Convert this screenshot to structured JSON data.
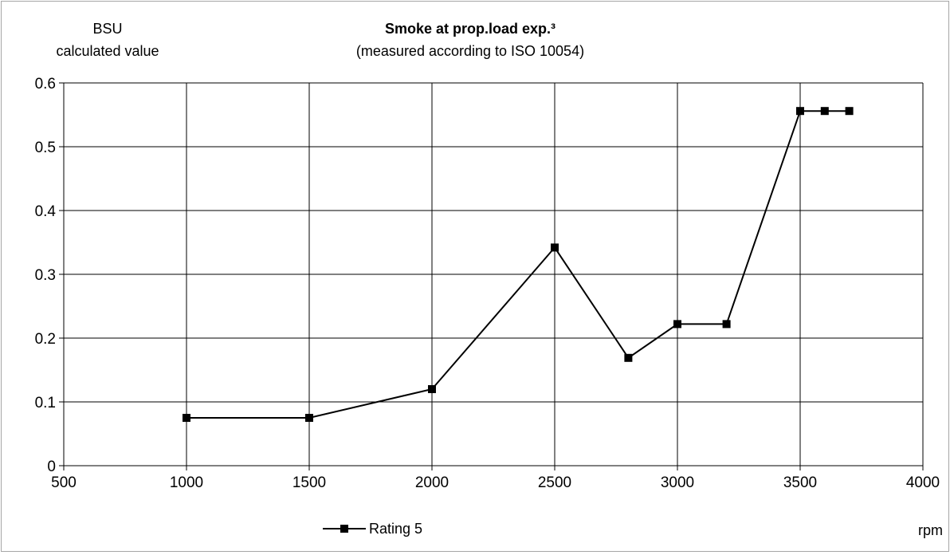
{
  "chart_data": {
    "type": "line",
    "title": "Smoke at prop.load exp.³",
    "subtitle": "(measured according to ISO 10054)",
    "ylabel_line1": "BSU",
    "ylabel_line2": "calculated value",
    "xlabel": "rpm",
    "xlim": [
      500,
      4000
    ],
    "ylim": [
      0,
      0.6
    ],
    "xticks": [
      500,
      1000,
      1500,
      2000,
      2500,
      3000,
      3500,
      4000
    ],
    "yticks": [
      0,
      0.1,
      0.2,
      0.3,
      0.4,
      0.5,
      0.6
    ],
    "xtick_labels": [
      "500",
      "1000",
      "1500",
      "2000",
      "2500",
      "3000",
      "3500",
      "4000"
    ],
    "ytick_labels": [
      "0",
      "0.1",
      "0.2",
      "0.3",
      "0.4",
      "0.5",
      "0.6"
    ],
    "grid": true,
    "legend_position": "bottom",
    "series": [
      {
        "name": "Rating  5",
        "color": "#000000",
        "marker": "square",
        "x": [
          1000,
          1500,
          2000,
          2500,
          2800,
          3000,
          3200,
          3500,
          3600,
          3700
        ],
        "y": [
          0.075,
          0.075,
          0.12,
          0.342,
          0.169,
          0.222,
          0.222,
          0.556,
          0.556,
          0.556
        ]
      }
    ]
  }
}
